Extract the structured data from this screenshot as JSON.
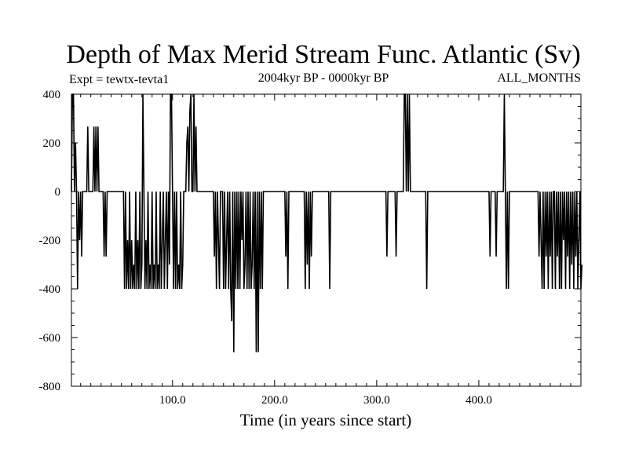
{
  "chart_data": {
    "type": "line",
    "title": "Depth of Max Merid Stream Func. Atlantic (Sv)",
    "subtitle_left": "Expt = tewtx-tevta1",
    "subtitle_center": "2004kyr BP - 0000kyr BP",
    "subtitle_right": "ALL_MONTHS",
    "xlabel": "Time (in years since start)",
    "ylabel": "",
    "xlim": [
      1,
      500
    ],
    "ylim": [
      -800,
      400
    ],
    "x_ticks": [
      100,
      200,
      300,
      400
    ],
    "x_tick_labels": [
      "100.0",
      "200.0",
      "300.0",
      "400.0"
    ],
    "y_ticks": [
      400,
      200,
      0,
      -200,
      -400,
      -600,
      -800
    ],
    "y_tick_labels": [
      "400",
      "200",
      "0",
      "-200",
      "-400",
      "-600",
      "-800"
    ],
    "grid": false,
    "line_color": "#000000",
    "series": [
      {
        "values": [
          0,
          400,
          400,
          0,
          200,
          0,
          -400,
          0,
          -200,
          0,
          -267,
          0,
          0,
          0,
          0,
          0,
          267,
          0,
          0,
          0,
          0,
          0,
          267,
          0,
          267,
          0,
          267,
          0,
          0,
          0,
          0,
          0,
          -267,
          0,
          -267,
          0,
          0,
          0,
          0,
          0,
          0,
          0,
          0,
          0,
          0,
          0,
          0,
          0,
          0,
          0,
          0,
          0,
          -400,
          0,
          -400,
          -200,
          -400,
          0,
          -400,
          -200,
          -400,
          -300,
          -400,
          0,
          -400,
          -200,
          -400,
          0,
          -400,
          -300,
          400,
          0,
          -400,
          -200,
          -400,
          0,
          -400,
          -300,
          -400,
          0,
          -400,
          -300,
          -400,
          0,
          -400,
          -300,
          -400,
          0,
          -400,
          -200,
          0,
          -400,
          -200,
          0,
          -400,
          0,
          -300,
          400,
          400,
          0,
          -400,
          0,
          -400,
          0,
          -400,
          -300,
          -400,
          0,
          -400,
          -300,
          0,
          0,
          0,
          200,
          267,
          0,
          333,
          400,
          0,
          0,
          400,
          0,
          267,
          0,
          0,
          0,
          0,
          0,
          0,
          0,
          0,
          0,
          0,
          0,
          0,
          0,
          0,
          0,
          0,
          0,
          -267,
          0,
          -400,
          0,
          -200,
          -400,
          0,
          0,
          0,
          -400,
          0,
          -400,
          -200,
          0,
          -400,
          0,
          -400,
          -533,
          0,
          -660,
          0,
          -400,
          0,
          -400,
          0,
          -400,
          0,
          -200,
          0,
          -400,
          -300,
          0,
          -400,
          0,
          -400,
          0,
          -400,
          -300,
          0,
          -400,
          0,
          -660,
          0,
          -660,
          0,
          -400,
          0,
          -400,
          0,
          0,
          0,
          0,
          0,
          0,
          0,
          0,
          0,
          0,
          0,
          0,
          0,
          0,
          0,
          0,
          0,
          0,
          0,
          0,
          0,
          0,
          -267,
          0,
          -400,
          0,
          0,
          0,
          0,
          0,
          0,
          0,
          0,
          0,
          0,
          0,
          0,
          0,
          0,
          0,
          0,
          -400,
          0,
          -300,
          0,
          -400,
          0,
          -267,
          0,
          0,
          0,
          0,
          0,
          0,
          0,
          0,
          0,
          0,
          0,
          0,
          0,
          0,
          0,
          0,
          0,
          -400,
          0,
          0,
          0,
          0,
          0,
          0,
          0,
          0,
          0,
          0,
          0,
          0,
          0,
          0,
          0,
          0,
          0,
          0,
          0,
          0,
          0,
          0,
          0,
          0,
          0,
          0,
          0,
          0,
          0,
          0,
          0,
          0,
          0,
          0,
          0,
          0,
          0,
          0,
          0,
          0,
          0,
          0,
          0,
          0,
          0,
          0,
          0,
          0,
          0,
          0,
          0,
          0,
          0,
          0,
          0,
          -267,
          0,
          0,
          0,
          0,
          0,
          0,
          0,
          0,
          -267,
          0,
          0,
          0,
          0,
          0,
          0,
          0,
          400,
          400,
          0,
          400,
          0,
          400,
          0,
          0,
          0,
          0,
          0,
          0,
          0,
          0,
          0,
          0,
          0,
          0,
          0,
          0,
          0,
          0,
          -400,
          0,
          0,
          0,
          0,
          0,
          0,
          0,
          0,
          0,
          0,
          0,
          0,
          0,
          0,
          0,
          0,
          0,
          0,
          0,
          0,
          0,
          0,
          0,
          0,
          0,
          0,
          0,
          0,
          0,
          0,
          0,
          0,
          0,
          0,
          0,
          0,
          0,
          0,
          0,
          0,
          0,
          0,
          0,
          0,
          0,
          0,
          0,
          0,
          0,
          0,
          0,
          0,
          0,
          0,
          0,
          0,
          0,
          0,
          0,
          0,
          0,
          -267,
          0,
          0,
          0,
          0,
          0,
          -267,
          0,
          0,
          0,
          0,
          0,
          0,
          0,
          400,
          0,
          -400,
          0,
          -400,
          0,
          0,
          0,
          0,
          0,
          0,
          0,
          0,
          0,
          0,
          0,
          0,
          0,
          0,
          0,
          0,
          0,
          0,
          0,
          0,
          0,
          0,
          0,
          0,
          0,
          0,
          0,
          0,
          0,
          -267,
          0,
          -200,
          -400,
          0,
          -400,
          0,
          -267,
          0,
          -400,
          0,
          -267,
          0,
          -400,
          0,
          0,
          -400,
          0,
          -267,
          0,
          -400,
          0,
          -400,
          0,
          -200,
          0,
          -400,
          0,
          -267,
          0,
          -400,
          0,
          -300,
          0,
          -400,
          0,
          -267,
          0,
          -400,
          -200,
          0,
          -400,
          -300
        ]
      }
    ]
  }
}
